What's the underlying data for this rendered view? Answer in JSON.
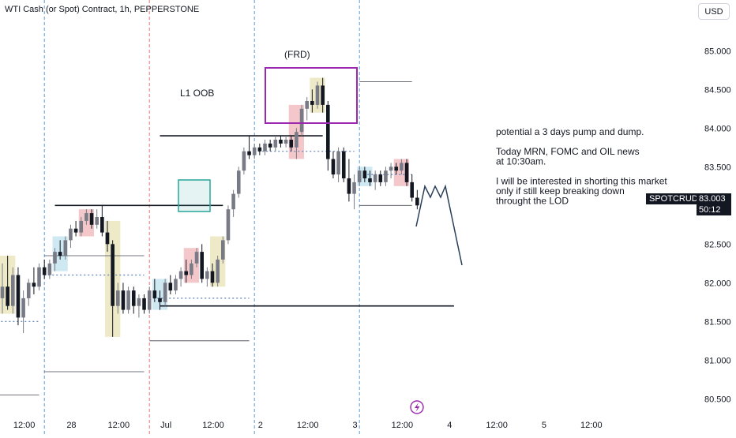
{
  "header": {
    "title": "WTI Cash (or Spot) Contract, 1h, PEPPERSTONE",
    "currency": "USD"
  },
  "price_label": {
    "symbol": "SPOTCRUDE",
    "last_price": "83.003",
    "countdown": "50:12"
  },
  "annotations": {
    "frd": "(FRD)",
    "l1": "L1 OOB",
    "note_lines": [
      "potential a 3 days pump and dump.",
      "",
      "Today MRN, FOMC and OIL news",
      "at 10:30am.",
      "",
      "I will be interested in shorting this market",
      "only if still keep breaking down",
      "throught the LOD"
    ]
  },
  "colors": {
    "up": "#787b86",
    "down": "#131722",
    "highlight_yellow": "#e8e3b4",
    "highlight_red": "#f0b5b9",
    "highlight_blue": "#bfe2ef",
    "frd_box": "#9c27b0",
    "oob_box": "#26a69a",
    "session_line": "#5b9bd5",
    "month_line": "#e57373"
  },
  "chart_data": {
    "type": "candlestick",
    "symbol": "SPOTCRUDE",
    "timeframe": "1h",
    "y_axis": {
      "min": 80.35,
      "max": 85.35,
      "ticks": [
        85.0,
        84.5,
        84.0,
        83.5,
        83.0,
        82.5,
        82.0,
        81.5,
        81.0,
        80.5
      ],
      "tick_labels": [
        "85.000",
        "84.500",
        "84.000",
        "83.500",
        "83.000",
        "82.500",
        "82.000",
        "81.500",
        "81.000",
        "80.500"
      ]
    },
    "x_axis": {
      "count": 124,
      "tick_labels": [
        {
          "index": 4,
          "label": "12:00"
        },
        {
          "index": 13,
          "label": "28"
        },
        {
          "index": 22,
          "label": "12:00"
        },
        {
          "index": 31,
          "label": "Jul"
        },
        {
          "index": 40,
          "label": "12:00"
        },
        {
          "index": 49,
          "label": "2"
        },
        {
          "index": 58,
          "label": "12:00"
        },
        {
          "index": 67,
          "label": "3"
        },
        {
          "index": 76,
          "label": "12:00"
        },
        {
          "index": 85,
          "label": "4"
        },
        {
          "index": 94,
          "label": "12:00"
        },
        {
          "index": 103,
          "label": "5"
        },
        {
          "index": 112,
          "label": "12:00"
        }
      ]
    },
    "candles": [
      {
        "o": 81.8,
        "h": 82.25,
        "l": 81.6,
        "c": 81.95
      },
      {
        "o": 81.95,
        "h": 82.35,
        "l": 81.65,
        "c": 81.7
      },
      {
        "o": 81.7,
        "h": 82.2,
        "l": 81.6,
        "c": 82.1
      },
      {
        "o": 82.1,
        "h": 82.2,
        "l": 81.45,
        "c": 81.55
      },
      {
        "o": 81.55,
        "h": 81.9,
        "l": 81.35,
        "c": 81.8
      },
      {
        "o": 81.8,
        "h": 82.05,
        "l": 81.7,
        "c": 82.0
      },
      {
        "o": 82.0,
        "h": 82.2,
        "l": 81.85,
        "c": 81.95
      },
      {
        "o": 81.95,
        "h": 82.25,
        "l": 81.9,
        "c": 82.2
      },
      {
        "o": 82.2,
        "h": 82.3,
        "l": 82.05,
        "c": 82.1
      },
      {
        "o": 82.1,
        "h": 82.3,
        "l": 82.05,
        "c": 82.25
      },
      {
        "o": 82.25,
        "h": 82.45,
        "l": 82.15,
        "c": 82.4
      },
      {
        "o": 82.4,
        "h": 82.55,
        "l": 82.3,
        "c": 82.35
      },
      {
        "o": 82.35,
        "h": 82.6,
        "l": 82.3,
        "c": 82.55
      },
      {
        "o": 82.55,
        "h": 82.75,
        "l": 82.45,
        "c": 82.7
      },
      {
        "o": 82.7,
        "h": 82.8,
        "l": 82.6,
        "c": 82.65
      },
      {
        "o": 82.65,
        "h": 82.85,
        "l": 82.6,
        "c": 82.8
      },
      {
        "o": 82.8,
        "h": 82.95,
        "l": 82.75,
        "c": 82.9
      },
      {
        "o": 82.9,
        "h": 82.95,
        "l": 82.7,
        "c": 82.75
      },
      {
        "o": 82.75,
        "h": 82.95,
        "l": 82.7,
        "c": 82.85
      },
      {
        "o": 82.85,
        "h": 83.0,
        "l": 82.6,
        "c": 82.65
      },
      {
        "o": 82.65,
        "h": 82.8,
        "l": 82.4,
        "c": 82.5
      },
      {
        "o": 82.5,
        "h": 82.55,
        "l": 81.3,
        "c": 81.7
      },
      {
        "o": 81.7,
        "h": 82.0,
        "l": 81.6,
        "c": 81.9
      },
      {
        "o": 81.9,
        "h": 82.0,
        "l": 81.6,
        "c": 81.65
      },
      {
        "o": 81.65,
        "h": 81.95,
        "l": 81.6,
        "c": 81.9
      },
      {
        "o": 81.9,
        "h": 81.95,
        "l": 81.6,
        "c": 81.7
      },
      {
        "o": 81.7,
        "h": 81.85,
        "l": 81.55,
        "c": 81.8
      },
      {
        "o": 81.8,
        "h": 81.85,
        "l": 81.6,
        "c": 81.65
      },
      {
        "o": 81.65,
        "h": 81.95,
        "l": 81.6,
        "c": 81.9
      },
      {
        "o": 81.9,
        "h": 82.05,
        "l": 81.75,
        "c": 81.8
      },
      {
        "o": 81.8,
        "h": 81.9,
        "l": 81.65,
        "c": 81.75
      },
      {
        "o": 81.75,
        "h": 82.05,
        "l": 81.7,
        "c": 82.0
      },
      {
        "o": 82.0,
        "h": 82.1,
        "l": 81.85,
        "c": 81.9
      },
      {
        "o": 81.9,
        "h": 82.1,
        "l": 81.85,
        "c": 82.05
      },
      {
        "o": 82.05,
        "h": 82.2,
        "l": 81.95,
        "c": 82.15
      },
      {
        "o": 82.15,
        "h": 82.3,
        "l": 82.0,
        "c": 82.1
      },
      {
        "o": 82.1,
        "h": 82.3,
        "l": 82.05,
        "c": 82.25
      },
      {
        "o": 82.25,
        "h": 82.45,
        "l": 82.2,
        "c": 82.4
      },
      {
        "o": 82.4,
        "h": 82.5,
        "l": 82.0,
        "c": 82.05
      },
      {
        "o": 82.05,
        "h": 82.2,
        "l": 81.95,
        "c": 82.15
      },
      {
        "o": 82.15,
        "h": 82.25,
        "l": 81.95,
        "c": 82.0
      },
      {
        "o": 82.0,
        "h": 82.35,
        "l": 81.95,
        "c": 82.3
      },
      {
        "o": 82.3,
        "h": 82.6,
        "l": 82.25,
        "c": 82.55
      },
      {
        "o": 82.55,
        "h": 83.0,
        "l": 82.5,
        "c": 82.95
      },
      {
        "o": 82.95,
        "h": 83.2,
        "l": 82.85,
        "c": 83.15
      },
      {
        "o": 83.15,
        "h": 83.5,
        "l": 83.1,
        "c": 83.45
      },
      {
        "o": 83.45,
        "h": 83.75,
        "l": 83.4,
        "c": 83.7
      },
      {
        "o": 83.7,
        "h": 83.9,
        "l": 83.6,
        "c": 83.65
      },
      {
        "o": 83.65,
        "h": 83.8,
        "l": 83.6,
        "c": 83.75
      },
      {
        "o": 83.75,
        "h": 83.8,
        "l": 83.65,
        "c": 83.7
      },
      {
        "o": 83.7,
        "h": 83.85,
        "l": 83.65,
        "c": 83.8
      },
      {
        "o": 83.8,
        "h": 83.85,
        "l": 83.7,
        "c": 83.75
      },
      {
        "o": 83.75,
        "h": 83.9,
        "l": 83.7,
        "c": 83.85
      },
      {
        "o": 83.85,
        "h": 83.9,
        "l": 83.75,
        "c": 83.8
      },
      {
        "o": 83.8,
        "h": 83.9,
        "l": 83.75,
        "c": 83.85
      },
      {
        "o": 83.85,
        "h": 83.9,
        "l": 83.7,
        "c": 83.75
      },
      {
        "o": 83.75,
        "h": 84.0,
        "l": 83.6,
        "c": 83.95
      },
      {
        "o": 83.95,
        "h": 84.3,
        "l": 83.9,
        "c": 84.25
      },
      {
        "o": 84.25,
        "h": 84.4,
        "l": 84.1,
        "c": 84.35
      },
      {
        "o": 84.35,
        "h": 84.5,
        "l": 84.2,
        "c": 84.3
      },
      {
        "o": 84.3,
        "h": 84.6,
        "l": 84.25,
        "c": 84.55
      },
      {
        "o": 84.55,
        "h": 84.65,
        "l": 84.2,
        "c": 84.3
      },
      {
        "o": 84.3,
        "h": 84.35,
        "l": 83.45,
        "c": 83.6
      },
      {
        "o": 83.6,
        "h": 83.7,
        "l": 83.35,
        "c": 83.4
      },
      {
        "o": 83.4,
        "h": 83.75,
        "l": 83.3,
        "c": 83.7
      },
      {
        "o": 83.7,
        "h": 83.75,
        "l": 83.3,
        "c": 83.35
      },
      {
        "o": 83.35,
        "h": 83.6,
        "l": 83.05,
        "c": 83.15
      },
      {
        "o": 83.15,
        "h": 83.4,
        "l": 82.95,
        "c": 83.3
      },
      {
        "o": 83.3,
        "h": 83.5,
        "l": 83.25,
        "c": 83.45
      },
      {
        "o": 83.45,
        "h": 83.5,
        "l": 83.3,
        "c": 83.35
      },
      {
        "o": 83.35,
        "h": 83.45,
        "l": 83.25,
        "c": 83.3
      },
      {
        "o": 83.3,
        "h": 83.45,
        "l": 83.2,
        "c": 83.4
      },
      {
        "o": 83.4,
        "h": 83.45,
        "l": 83.25,
        "c": 83.3
      },
      {
        "o": 83.3,
        "h": 83.5,
        "l": 83.25,
        "c": 83.45
      },
      {
        "o": 83.45,
        "h": 83.55,
        "l": 83.35,
        "c": 83.5
      },
      {
        "o": 83.5,
        "h": 83.55,
        "l": 83.4,
        "c": 83.45
      },
      {
        "o": 83.45,
        "h": 83.6,
        "l": 83.4,
        "c": 83.55
      },
      {
        "o": 83.55,
        "h": 83.6,
        "l": 83.25,
        "c": 83.3
      },
      {
        "o": 83.3,
        "h": 83.4,
        "l": 83.05,
        "c": 83.1
      },
      {
        "o": 83.1,
        "h": 83.2,
        "l": 82.95,
        "c": 83.0
      }
    ]
  }
}
